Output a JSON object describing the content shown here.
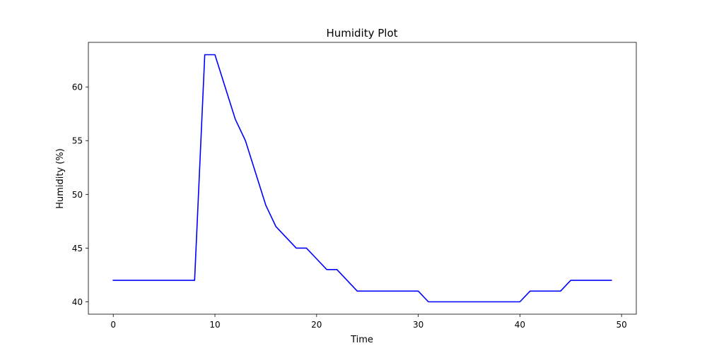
{
  "chart_data": {
    "type": "line",
    "title": "Humidity Plot",
    "xlabel": "Time",
    "ylabel": "Humidity (%)",
    "xlim": [
      -2.45,
      51.45
    ],
    "ylim": [
      38.85,
      64.15
    ],
    "xticks": [
      0,
      10,
      20,
      30,
      40,
      50
    ],
    "yticks": [
      40,
      45,
      50,
      55,
      60
    ],
    "grid": false,
    "series": [
      {
        "color": "#0000ff",
        "x": [
          0,
          1,
          2,
          3,
          4,
          5,
          6,
          7,
          8,
          9,
          10,
          11,
          12,
          13,
          14,
          15,
          16,
          17,
          18,
          19,
          20,
          21,
          22,
          23,
          24,
          25,
          26,
          27,
          28,
          29,
          30,
          31,
          32,
          33,
          34,
          35,
          36,
          37,
          38,
          39,
          40,
          41,
          42,
          43,
          44,
          45,
          46,
          47,
          48,
          49
        ],
        "y": [
          42,
          42,
          42,
          42,
          42,
          42,
          42,
          42,
          42,
          63,
          63,
          60,
          57,
          55,
          52,
          49,
          47,
          46,
          45,
          45,
          44,
          43,
          43,
          42,
          41,
          41,
          41,
          41,
          41,
          41,
          41,
          40,
          40,
          40,
          40,
          40,
          40,
          40,
          40,
          40,
          40,
          41,
          41,
          41,
          41,
          42,
          42,
          42,
          42,
          42
        ]
      }
    ]
  }
}
